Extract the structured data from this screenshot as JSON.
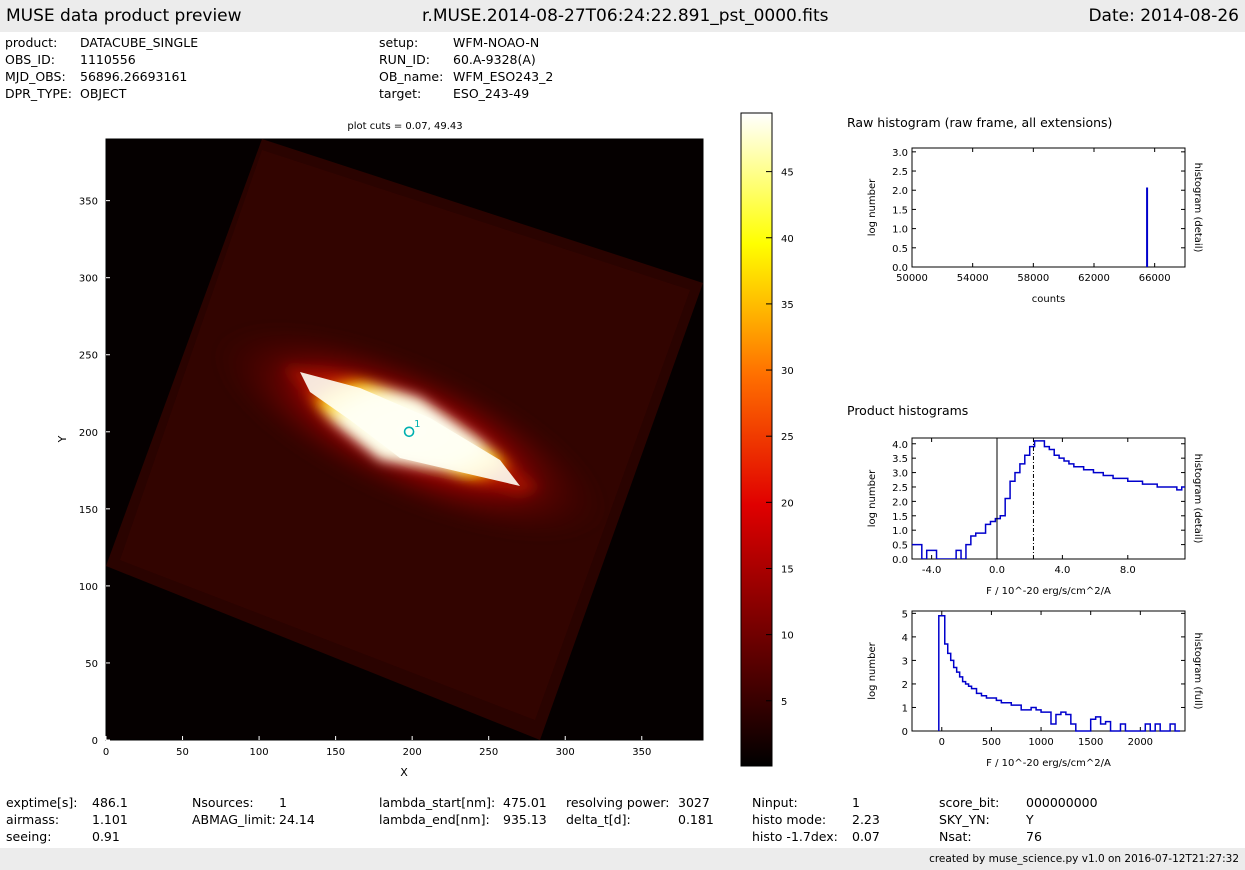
{
  "header": {
    "left": "MUSE data product preview",
    "center": "r.MUSE.2014-08-27T06:24:22.891_pst_0000.fits",
    "right": "Date: 2014-08-26"
  },
  "meta": [
    {
      "label": "product:",
      "value": "DATACUBE_SINGLE"
    },
    {
      "label": "OBS_ID:",
      "value": "1110556"
    },
    {
      "label": "MJD_OBS:",
      "value": "56896.26693161"
    },
    {
      "label": "DPR_TYPE:",
      "value": "OBJECT"
    },
    {
      "label": "setup:",
      "value": "WFM-NOAO-N"
    },
    {
      "label": "RUN_ID:",
      "value": "60.A-9328(A)"
    },
    {
      "label": "OB_name:",
      "value": "WFM_ESO243_2"
    },
    {
      "label": "target:",
      "value": "ESO_243-49"
    }
  ],
  "stats": [
    {
      "label": "exptime[s]:",
      "value": "486.1"
    },
    {
      "label": "airmass:",
      "value": "1.101"
    },
    {
      "label": "seeing:",
      "value": "0.91"
    },
    {
      "label": "Nsources:",
      "value": "1"
    },
    {
      "label": "ABMAG_limit:",
      "value": "24.14"
    },
    {
      "label": "lambda_start[nm]:",
      "value": "475.01"
    },
    {
      "label": "lambda_end[nm]:",
      "value": "935.13"
    },
    {
      "label": "resolving power:",
      "value": "3027"
    },
    {
      "label": "delta_t[d]:",
      "value": "0.181"
    },
    {
      "label": "Ninput:",
      "value": "1"
    },
    {
      "label": "histo mode:",
      "value": "2.23"
    },
    {
      "label": "histo -1.7dex:",
      "value": "0.07"
    },
    {
      "label": "score_bit:",
      "value": "000000000"
    },
    {
      "label": "SKY_YN:",
      "value": "Y"
    },
    {
      "label": "Nsat:",
      "value": "76"
    }
  ],
  "footer": "created by muse_science.py v1.0 on 2016-07-12T21:27:32",
  "section_raw": "Raw histogram (raw frame, all extensions)",
  "section_product": "Product histograms",
  "chart_data": [
    {
      "type": "heatmap",
      "title": "plot cuts = 0.07, 49.43",
      "xlabel": "X",
      "ylabel": "Y",
      "xlim": [
        0,
        390
      ],
      "ylim": [
        0,
        390
      ],
      "xticks": [
        0,
        50,
        100,
        150,
        200,
        250,
        300,
        350
      ],
      "yticks": [
        0,
        50,
        100,
        150,
        200,
        250,
        300,
        350
      ],
      "colorbar": {
        "range": [
          0.07,
          49.43
        ],
        "ticks": [
          5,
          10,
          15,
          20,
          25,
          30,
          35,
          40,
          45
        ]
      },
      "source": {
        "label": "1",
        "x": 198,
        "y": 200
      },
      "color": "#00b0b0"
    },
    {
      "type": "bar",
      "xlabel": "counts",
      "ylabel": "log number",
      "right_label": "histogram (detail)",
      "xlim": [
        50000,
        68000
      ],
      "ylim": [
        0,
        3.1
      ],
      "xticks": [
        50000,
        54000,
        58000,
        62000,
        66000
      ],
      "yticks": [
        0.0,
        0.5,
        1.0,
        1.5,
        2.0,
        2.5,
        3.0
      ],
      "bar_x": 65500,
      "bar_value": 2.07,
      "color": "#0000cc"
    },
    {
      "type": "line",
      "xlabel": "F / 10^-20 erg/s/cm^2/A",
      "ylabel": "log number",
      "right_label": "histogram (detail)",
      "xlim": [
        -5.2,
        11.5
      ],
      "ylim": [
        0,
        4.2
      ],
      "xticks": [
        -4.0,
        0.0,
        4.0,
        8.0
      ],
      "yticks": [
        0.0,
        0.5,
        1.0,
        1.5,
        2.0,
        2.5,
        3.0,
        3.5,
        4.0
      ],
      "vline_solid": 0.0,
      "vline_dashed": 2.23,
      "x": [
        -5.2,
        -4.9,
        -4.6,
        -4.3,
        -4.0,
        -3.7,
        -3.4,
        -3.1,
        -2.8,
        -2.5,
        -2.2,
        -1.9,
        -1.6,
        -1.3,
        -1.0,
        -0.7,
        -0.4,
        -0.1,
        0.2,
        0.5,
        0.8,
        1.1,
        1.4,
        1.7,
        2.0,
        2.3,
        2.6,
        2.9,
        3.2,
        3.5,
        3.8,
        4.1,
        4.4,
        4.7,
        5.0,
        5.3,
        5.6,
        5.9,
        6.2,
        6.5,
        6.8,
        7.1,
        7.4,
        7.7,
        8.0,
        8.3,
        8.6,
        8.9,
        9.2,
        9.5,
        9.8,
        10.1,
        10.4,
        10.7,
        11.0,
        11.3
      ],
      "y": [
        0.5,
        0.5,
        0.0,
        0.3,
        0.3,
        0.0,
        0.0,
        0.0,
        0.0,
        0.3,
        0.0,
        0.5,
        0.8,
        0.9,
        0.9,
        1.2,
        1.3,
        1.4,
        1.5,
        2.1,
        2.7,
        3.0,
        3.3,
        3.6,
        3.9,
        4.1,
        4.1,
        3.9,
        3.8,
        3.6,
        3.5,
        3.4,
        3.3,
        3.2,
        3.2,
        3.1,
        3.1,
        3.0,
        3.0,
        2.9,
        2.9,
        2.8,
        2.8,
        2.8,
        2.7,
        2.7,
        2.7,
        2.6,
        2.6,
        2.6,
        2.5,
        2.5,
        2.5,
        2.5,
        2.4,
        2.5
      ],
      "color": "#0000cc"
    },
    {
      "type": "line",
      "xlabel": "F / 10^-20 erg/s/cm^2/A",
      "ylabel": "log number",
      "right_label": "histogram (full)",
      "xlim": [
        -300,
        2450
      ],
      "ylim": [
        0,
        5.1
      ],
      "xticks": [
        0,
        500,
        1000,
        1500,
        2000
      ],
      "yticks": [
        0,
        1,
        2,
        3,
        4,
        5
      ],
      "x": [
        -30,
        0,
        30,
        60,
        90,
        120,
        150,
        180,
        210,
        240,
        270,
        300,
        350,
        400,
        450,
        500,
        550,
        600,
        650,
        700,
        750,
        800,
        850,
        900,
        950,
        1000,
        1050,
        1100,
        1150,
        1200,
        1250,
        1300,
        1350,
        1400,
        1450,
        1500,
        1550,
        1600,
        1650,
        1700,
        1750,
        1800,
        1850,
        1900,
        1950,
        2000,
        2050,
        2100,
        2150,
        2200,
        2250,
        2300,
        2350
      ],
      "y": [
        4.9,
        4.9,
        3.7,
        3.3,
        3.0,
        2.7,
        2.5,
        2.3,
        2.1,
        2.0,
        1.9,
        1.8,
        1.6,
        1.5,
        1.4,
        1.4,
        1.3,
        1.2,
        1.2,
        1.1,
        1.1,
        0.9,
        0.9,
        1.0,
        0.9,
        0.8,
        0.8,
        0.3,
        0.7,
        0.8,
        0.7,
        0.3,
        0.0,
        0.0,
        0.0,
        0.5,
        0.6,
        0.3,
        0.4,
        0.0,
        0.0,
        0.3,
        0.0,
        0.0,
        0.0,
        0.0,
        0.3,
        0.0,
        0.3,
        0.0,
        0.0,
        0.3,
        0.0
      ],
      "color": "#0000cc"
    }
  ]
}
